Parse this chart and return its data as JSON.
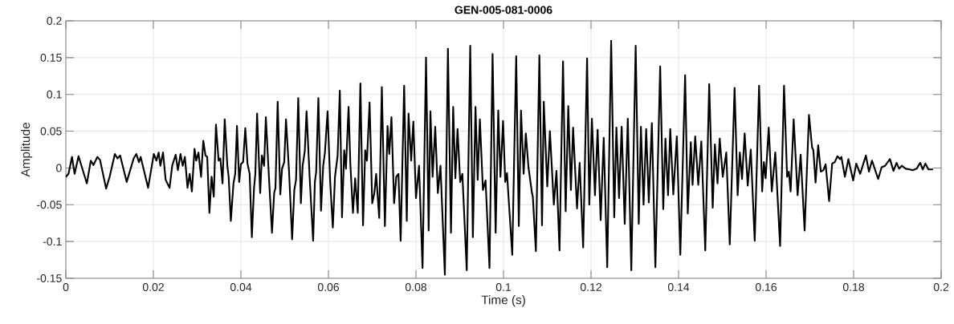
{
  "chart_data": {
    "type": "line",
    "title": "GEN-005-081-0006",
    "xlabel": "Time (s)",
    "ylabel": "Amplitude",
    "series": [
      {
        "color": "#000000",
        "x": [
          0.0,
          0.0006,
          0.0014,
          0.002,
          0.0029,
          0.0048,
          0.0057,
          0.0063,
          0.0072,
          0.0078,
          0.0092,
          0.01,
          0.0112,
          0.0118,
          0.0124,
          0.0139,
          0.0155,
          0.0161,
          0.0167,
          0.0171,
          0.0188,
          0.0201,
          0.0207,
          0.0212,
          0.0216,
          0.0222,
          0.0228,
          0.0237,
          0.0243,
          0.0251,
          0.0256,
          0.0262,
          0.0267,
          0.0272,
          0.0278,
          0.0283,
          0.0288,
          0.0294,
          0.0298,
          0.0303,
          0.0309,
          0.0314,
          0.0319,
          0.0323,
          0.0328,
          0.0333,
          0.0338,
          0.0343,
          0.0349,
          0.0353,
          0.0358,
          0.0363,
          0.0369,
          0.0372,
          0.0377,
          0.0383,
          0.0387,
          0.0391,
          0.0396,
          0.04,
          0.0405,
          0.041,
          0.0415,
          0.042,
          0.0425,
          0.043,
          0.0433,
          0.0437,
          0.0444,
          0.0448,
          0.0453,
          0.0457,
          0.0464,
          0.0471,
          0.0476,
          0.0479,
          0.0484,
          0.049,
          0.0494,
          0.0499,
          0.0503,
          0.051,
          0.0517,
          0.0522,
          0.0526,
          0.0531,
          0.0537,
          0.0541,
          0.0546,
          0.055,
          0.0557,
          0.0565,
          0.0569,
          0.0572,
          0.0577,
          0.0583,
          0.0588,
          0.0592,
          0.0598,
          0.0604,
          0.061,
          0.0615,
          0.0621,
          0.0626,
          0.0631,
          0.0636,
          0.064,
          0.0646,
          0.065,
          0.0656,
          0.0661,
          0.0667,
          0.0673,
          0.0679,
          0.0684,
          0.0688,
          0.0694,
          0.07,
          0.0705,
          0.0709,
          0.0716,
          0.0722,
          0.0729,
          0.0735,
          0.0739,
          0.0744,
          0.075,
          0.0755,
          0.076,
          0.0765,
          0.0773,
          0.0779,
          0.0783,
          0.0789,
          0.0794,
          0.08,
          0.0807,
          0.0815,
          0.0823,
          0.0829,
          0.0833,
          0.0838,
          0.0844,
          0.085,
          0.0856,
          0.0866,
          0.0873,
          0.088,
          0.0885,
          0.089,
          0.0895,
          0.0901,
          0.0906,
          0.0916,
          0.0924,
          0.093,
          0.0936,
          0.0941,
          0.0946,
          0.0953,
          0.0959,
          0.0968,
          0.0975,
          0.0982,
          0.0988,
          0.0993,
          0.0999,
          0.1004,
          0.1008,
          0.102,
          0.1029,
          0.1035,
          0.104,
          0.1046,
          0.1051,
          0.1057,
          0.1065,
          0.1067,
          0.1074,
          0.1082,
          0.1088,
          0.1092,
          0.11,
          0.1106,
          0.1115,
          0.1121,
          0.1128,
          0.1136,
          0.1142,
          0.1148,
          0.1154,
          0.1159,
          0.1168,
          0.1174,
          0.1182,
          0.1191,
          0.1196,
          0.1202,
          0.1209,
          0.1215,
          0.1222,
          0.1229,
          0.1237,
          0.1246,
          0.1253,
          0.1258,
          0.1264,
          0.127,
          0.1277,
          0.1284,
          0.1292,
          0.1302,
          0.1309,
          0.1314,
          0.132,
          0.1326,
          0.1332,
          0.1339,
          0.1347,
          0.1358,
          0.1365,
          0.137,
          0.1376,
          0.1381,
          0.1388,
          0.1396,
          0.1404,
          0.1415,
          0.1421,
          0.1428,
          0.1432,
          0.1438,
          0.1445,
          0.1452,
          0.1461,
          0.147,
          0.1478,
          0.1483,
          0.1489,
          0.1494,
          0.1501,
          0.1509,
          0.1517,
          0.1528,
          0.1535,
          0.154,
          0.1545,
          0.1551,
          0.1558,
          0.1565,
          0.1574,
          0.1584,
          0.1591,
          0.1595,
          0.1599,
          0.1606,
          0.1613,
          0.1621,
          0.1632,
          0.1641,
          0.1648,
          0.1652,
          0.1656,
          0.1663,
          0.1672,
          0.1679,
          0.1688,
          0.1698,
          0.1705,
          0.1708,
          0.1713,
          0.1719,
          0.1725,
          0.1731,
          0.1736,
          0.1744,
          0.1751,
          0.1757,
          0.1763,
          0.1769,
          0.1772,
          0.178,
          0.1788,
          0.1799,
          0.1806,
          0.1815,
          0.1828,
          0.1835,
          0.1842,
          0.1856,
          0.1864,
          0.1872,
          0.1883,
          0.1891,
          0.1898,
          0.1904,
          0.191,
          0.1919,
          0.1928,
          0.1935,
          0.1944,
          0.1952,
          0.1958,
          0.1964,
          0.1971,
          0.198
        ],
        "values": [
          -0.012,
          -0.008,
          0.015,
          -0.008,
          0.016,
          -0.021,
          0.01,
          0.004,
          0.015,
          0.011,
          -0.028,
          -0.012,
          0.019,
          0.013,
          0.017,
          -0.019,
          0.013,
          0.019,
          0.008,
          0.015,
          -0.027,
          0.019,
          0.01,
          0.021,
          0.003,
          0.021,
          -0.016,
          -0.027,
          0.003,
          0.018,
          -0.003,
          0.019,
          0.003,
          0.015,
          -0.027,
          -0.008,
          -0.032,
          0.026,
          0.01,
          0.021,
          -0.012,
          0.037,
          0.017,
          0.015,
          -0.061,
          -0.012,
          -0.039,
          0.059,
          0.01,
          0.013,
          -0.021,
          0.066,
          0.003,
          -0.012,
          -0.072,
          -0.021,
          -0.008,
          0.057,
          -0.019,
          0.005,
          0.008,
          0.054,
          0.006,
          -0.008,
          -0.094,
          -0.027,
          -0.008,
          0.074,
          -0.034,
          0.017,
          0.003,
          0.069,
          -0.012,
          -0.088,
          -0.034,
          -0.027,
          0.09,
          -0.036,
          -0.001,
          0.008,
          0.066,
          -0.005,
          -0.097,
          -0.03,
          -0.016,
          0.095,
          -0.048,
          0.003,
          0.023,
          0.077,
          -0.012,
          -0.099,
          -0.019,
          -0.005,
          0.095,
          -0.058,
          0.003,
          0.021,
          0.077,
          -0.019,
          -0.081,
          -0.012,
          0.017,
          0.105,
          -0.067,
          0.024,
          -0.001,
          0.083,
          0.006,
          -0.061,
          -0.014,
          -0.061,
          0.115,
          -0.078,
          0.024,
          0.01,
          0.089,
          -0.048,
          -0.034,
          -0.008,
          -0.068,
          0.11,
          -0.079,
          0.057,
          0.019,
          0.069,
          -0.048,
          -0.012,
          -0.008,
          -0.099,
          0.112,
          -0.072,
          0.074,
          0.01,
          0.063,
          -0.041,
          0.003,
          -0.136,
          0.15,
          -0.085,
          0.077,
          -0.012,
          0.056,
          -0.034,
          0.003,
          -0.145,
          0.162,
          -0.088,
          0.083,
          -0.014,
          0.053,
          -0.019,
          -0.008,
          -0.139,
          0.166,
          -0.094,
          0.083,
          -0.016,
          0.066,
          -0.03,
          -0.017,
          -0.136,
          0.155,
          -0.088,
          0.078,
          -0.012,
          0.064,
          -0.019,
          -0.007,
          -0.118,
          0.152,
          -0.079,
          0.078,
          -0.008,
          0.047,
          0.001,
          -0.034,
          -0.039,
          -0.113,
          0.153,
          -0.078,
          0.09,
          -0.025,
          0.05,
          -0.05,
          -0.004,
          -0.112,
          0.145,
          -0.059,
          0.084,
          -0.03,
          0.055,
          -0.055,
          0.007,
          -0.108,
          0.149,
          -0.05,
          0.067,
          -0.037,
          0.052,
          -0.071,
          0.041,
          -0.135,
          0.173,
          -0.067,
          0.055,
          -0.041,
          0.056,
          -0.076,
          0.067,
          -0.139,
          0.166,
          -0.076,
          0.056,
          -0.05,
          0.053,
          -0.047,
          0.061,
          -0.135,
          0.138,
          -0.056,
          0.04,
          -0.037,
          0.053,
          -0.036,
          0.043,
          -0.118,
          0.126,
          -0.062,
          0.035,
          -0.023,
          0.043,
          -0.023,
          0.036,
          -0.112,
          0.114,
          -0.054,
          0.032,
          -0.021,
          0.04,
          -0.012,
          0.021,
          -0.104,
          0.109,
          -0.037,
          0.021,
          -0.015,
          0.047,
          -0.024,
          0.025,
          -0.099,
          0.112,
          -0.032,
          0.008,
          -0.014,
          0.055,
          -0.032,
          0.021,
          -0.106,
          0.112,
          -0.012,
          -0.005,
          -0.032,
          0.066,
          -0.037,
          0.018,
          -0.085,
          0.072,
          0.028,
          0.024,
          -0.02,
          0.031,
          -0.005,
          -0.003,
          0.005,
          -0.045,
          0.006,
          0.008,
          0.016,
          0.012,
          0.015,
          -0.012,
          0.012,
          -0.017,
          0.006,
          -0.008,
          0.017,
          -0.005,
          0.01,
          -0.015,
          0.001,
          0.003,
          0.012,
          -0.004,
          0.007,
          -0.001,
          0.003,
          -0.001,
          -0.002,
          -0.003,
          -0.001,
          0.007,
          -0.002,
          0.006,
          -0.002,
          -0.002
        ]
      }
    ],
    "xlim": [
      0,
      0.2
    ],
    "ylim": [
      -0.15,
      0.2
    ],
    "xticks": [
      0,
      0.02,
      0.04,
      0.06,
      0.08,
      0.1,
      0.12,
      0.14,
      0.16,
      0.18,
      0.2
    ],
    "yticks": [
      -0.15,
      -0.1,
      -0.05,
      0,
      0.05,
      0.1,
      0.15,
      0.2
    ],
    "grid": true
  }
}
